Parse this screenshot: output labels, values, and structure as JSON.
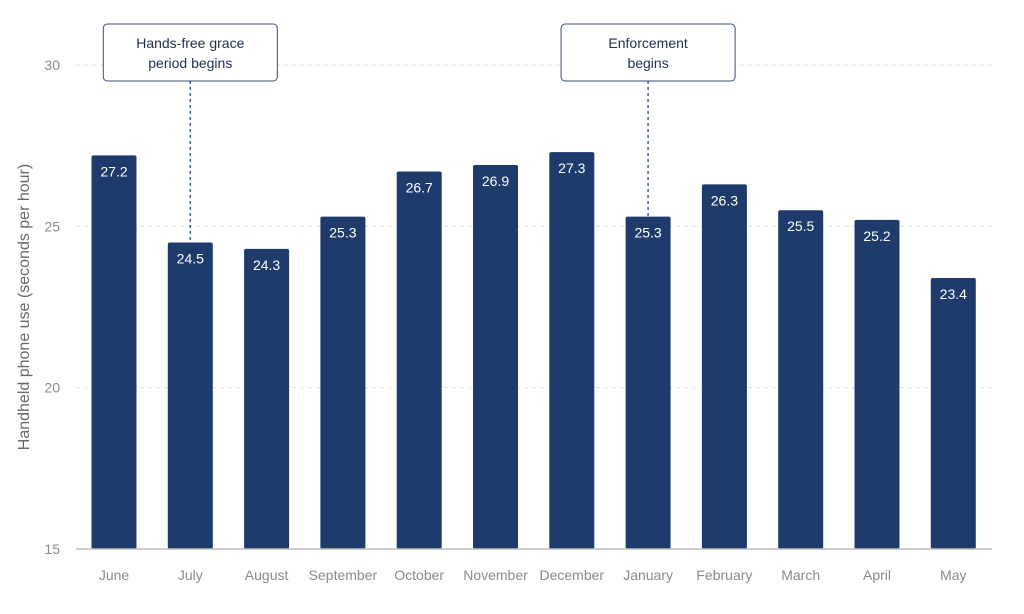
{
  "chart_data": {
    "type": "bar",
    "title": "",
    "xlabel": "",
    "ylabel": "Handheld phone use (seconds per hour)",
    "ylim": [
      15,
      31
    ],
    "yticks": [
      15,
      20,
      25,
      30
    ],
    "grid": true,
    "bar_color": "#1f3b6b",
    "categories": [
      "June",
      "July",
      "August",
      "September",
      "October",
      "November",
      "December",
      "January",
      "February",
      "March",
      "April",
      "May"
    ],
    "values": [
      27.2,
      24.5,
      24.3,
      25.3,
      26.7,
      26.9,
      27.3,
      25.3,
      26.3,
      25.5,
      25.2,
      23.4
    ],
    "annotations": [
      {
        "category": "July",
        "lines": [
          "Hands-free grace",
          "period begins"
        ]
      },
      {
        "category": "January",
        "lines": [
          "Enforcement",
          "begins"
        ]
      }
    ]
  }
}
